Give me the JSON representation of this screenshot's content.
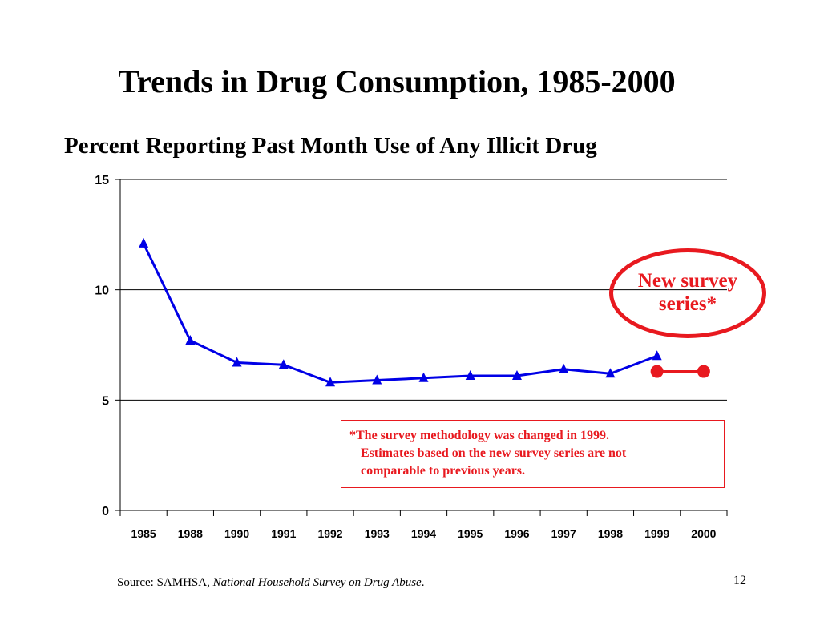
{
  "slide": {
    "title": "Trends in Drug Consumption, 1985-2000",
    "subtitle": "Percent Reporting Past Month Use of Any Illicit Drug",
    "source_prefix": "Source:  SAMHSA, ",
    "source_italic": "National Household Survey on Drug Abuse",
    "source_suffix": ".",
    "page_number": "12"
  },
  "callout": {
    "text": "New survey series*",
    "color": "#e8191f"
  },
  "note": {
    "lines": [
      "*The survey methodology was changed in 1999.",
      "Estimates based on the new survey series are not",
      "comparable to previous years."
    ]
  },
  "chart_data": {
    "type": "line",
    "title": "",
    "xlabel": "",
    "ylabel": "",
    "categories": [
      "1985",
      "1988",
      "1990",
      "1991",
      "1992",
      "1993",
      "1994",
      "1995",
      "1996",
      "1997",
      "1998",
      "1999",
      "2000"
    ],
    "ylim": [
      0,
      15
    ],
    "yticks": [
      0,
      5,
      10,
      15
    ],
    "grid": true,
    "series": [
      {
        "color": "#0000e6",
        "marker": "triangle",
        "values": [
          12.1,
          7.7,
          6.7,
          6.6,
          5.8,
          5.9,
          6.0,
          6.1,
          6.1,
          6.4,
          6.2,
          7.0,
          null
        ]
      },
      {
        "color": "#e8191f",
        "marker": "circle",
        "values": [
          null,
          null,
          null,
          null,
          null,
          null,
          null,
          null,
          null,
          null,
          null,
          6.3,
          6.3
        ]
      }
    ]
  }
}
